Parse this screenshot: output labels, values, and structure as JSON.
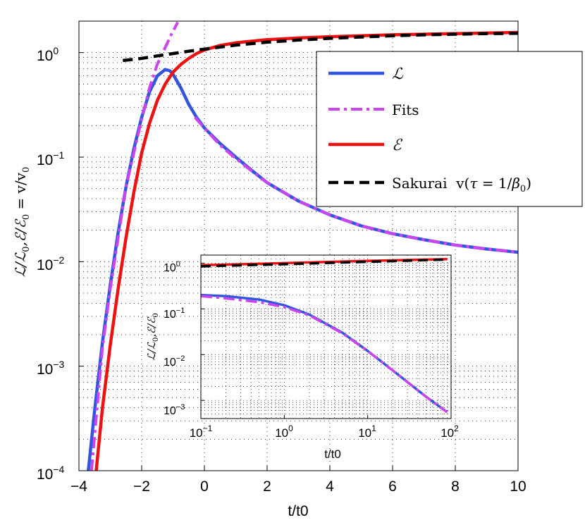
{
  "chart_data": [
    {
      "type": "line",
      "role": "main",
      "xlabel": "t/t0",
      "ylabel": "L/L0, E/E0 = v/v0",
      "ylabel_parts": {
        "a": "ℒ/ℒ",
        "b": "0",
        "c": ",ℰ/ℰ",
        "d": "0",
        "e": " = v/v",
        "f": "0"
      },
      "x_scale": "linear",
      "y_scale": "log",
      "xlim": [
        -4,
        10
      ],
      "ylim": [
        0.0001,
        2
      ],
      "x_ticks": [
        -4,
        -2,
        0,
        2,
        4,
        6,
        8,
        10
      ],
      "x_tick_labels": [
        "−4",
        "−2",
        "0",
        "2",
        "4",
        "6",
        "8",
        "10"
      ],
      "y_ticks": [
        0.0001,
        0.001,
        0.01,
        0.1,
        1
      ],
      "y_tick_labels": [
        {
          "base": "10",
          "exp": "−4"
        },
        {
          "base": "10",
          "exp": "−3"
        },
        {
          "base": "10",
          "exp": "−2"
        },
        {
          "base": "10",
          "exp": "−1"
        },
        {
          "base": "10",
          "exp": "0"
        }
      ],
      "grid": true,
      "legend": {
        "placement": "upper-right",
        "entries": [
          {
            "label": "ℒ",
            "series": "L"
          },
          {
            "label": "Fits",
            "series": "Fits"
          },
          {
            "label": "ℰ",
            "series": "E"
          },
          {
            "label_pre": "Sakurai  v(",
            "label_tau": "τ",
            "label_mid": " = 1/",
            "label_beta": "β",
            "label_sub": "0",
            "label_post": ")",
            "series": "Sakurai"
          }
        ]
      },
      "series": [
        {
          "name": "L",
          "color": "#3355dd",
          "style": "solid",
          "x": [
            -3.7,
            -3.5,
            -3.25,
            -3.0,
            -2.75,
            -2.5,
            -2.25,
            -2.0,
            -1.75,
            -1.5,
            -1.25,
            -1.1,
            -1.0,
            -0.75,
            -0.5,
            -0.25,
            0.0,
            0.5,
            1.0,
            1.5,
            2.0,
            3.0,
            4.0,
            5.0,
            6.0,
            7.0,
            8.0,
            9.0,
            10.0
          ],
          "y": [
            0.0001,
            0.00038,
            0.0017,
            0.006,
            0.019,
            0.052,
            0.12,
            0.24,
            0.42,
            0.6,
            0.69,
            0.67,
            0.62,
            0.46,
            0.32,
            0.24,
            0.19,
            0.135,
            0.1,
            0.075,
            0.057,
            0.038,
            0.028,
            0.022,
            0.0185,
            0.0162,
            0.0144,
            0.0132,
            0.0123
          ]
        },
        {
          "name": "Fits",
          "color": "#cc44ee",
          "style": "dashdot",
          "segments": [
            {
              "x": [
                -3.6,
                -3.25,
                -3.0,
                -2.5,
                -2.0,
                -1.75,
                -1.5,
                -1.25,
                -1.05,
                -0.85
              ],
              "y": [
                0.0001,
                0.0015,
                0.0055,
                0.052,
                0.23,
                0.46,
                0.78,
                1.12,
                1.5,
                1.95
              ]
            },
            {
              "x": [
                -0.3,
                0.0,
                0.5,
                1.0,
                1.5,
                2.0,
                3.0,
                4.0,
                5.0,
                6.0,
                7.0,
                8.0,
                9.0,
                10.0
              ],
              "y": [
                0.24,
                0.19,
                0.13,
                0.097,
                0.074,
                0.057,
                0.038,
                0.028,
                0.022,
                0.0185,
                0.0162,
                0.0144,
                0.0132,
                0.0123
              ]
            }
          ]
        },
        {
          "name": "E",
          "color": "#ee1111",
          "style": "solid",
          "x": [
            -3.45,
            -3.25,
            -3.0,
            -2.75,
            -2.5,
            -2.25,
            -2.0,
            -1.75,
            -1.5,
            -1.25,
            -1.0,
            -0.75,
            -0.5,
            -0.25,
            0.0,
            0.5,
            1.0,
            2.0,
            3.0,
            4.0,
            6.0,
            8.0,
            10.0
          ],
          "y": [
            0.0001,
            0.0004,
            0.0016,
            0.0055,
            0.017,
            0.046,
            0.11,
            0.21,
            0.35,
            0.5,
            0.65,
            0.77,
            0.88,
            0.98,
            1.06,
            1.17,
            1.24,
            1.33,
            1.38,
            1.42,
            1.48,
            1.52,
            1.56
          ]
        },
        {
          "name": "Sakurai",
          "color": "#000000",
          "style": "dashed",
          "x": [
            -2.6,
            -2.0,
            -1.5,
            -1.0,
            -0.5,
            0.0,
            0.5,
            1.0,
            2.0,
            3.0,
            4.0,
            5.0,
            6.0,
            7.0,
            8.0,
            9.0,
            10.0
          ],
          "y": [
            0.84,
            0.88,
            0.93,
            0.98,
            1.03,
            1.08,
            1.13,
            1.18,
            1.26,
            1.32,
            1.37,
            1.41,
            1.45,
            1.48,
            1.5,
            1.52,
            1.53
          ]
        }
      ]
    },
    {
      "type": "line",
      "role": "inset",
      "xlabel": "t/t0",
      "ylabel": "L/L0, E/E0",
      "ylabel_parts": {
        "a": "ℒ/ℒ",
        "b": "0",
        "c": ",ℰ/ℰ",
        "d": "0"
      },
      "x_scale": "log",
      "y_scale": "log",
      "xlim": [
        0.1,
        100
      ],
      "ylim": [
        0.0004,
        1.5
      ],
      "x_ticks": [
        0.1,
        1,
        10,
        100
      ],
      "x_tick_labels": [
        {
          "base": "10",
          "exp": "−1"
        },
        {
          "base": "10",
          "exp": "0"
        },
        {
          "base": "10",
          "exp": "1"
        },
        {
          "base": "10",
          "exp": "2"
        }
      ],
      "y_ticks": [
        0.001,
        0.01,
        0.1,
        1
      ],
      "y_tick_labels": [
        {
          "base": "10",
          "exp": "−3"
        },
        {
          "base": "10",
          "exp": "−2"
        },
        {
          "base": "10",
          "exp": "−1"
        },
        {
          "base": "10",
          "exp": "0"
        }
      ],
      "grid": true,
      "series": [
        {
          "name": "L",
          "color": "#3355dd",
          "style": "solid",
          "x": [
            0.1,
            0.2,
            0.5,
            1,
            2,
            5,
            10,
            20,
            50,
            90
          ],
          "y": [
            0.2,
            0.19,
            0.16,
            0.12,
            0.075,
            0.03,
            0.012,
            0.0045,
            0.0012,
            0.00055
          ]
        },
        {
          "name": "Fits",
          "color": "#cc44ee",
          "style": "dashdot",
          "x": [
            0.1,
            0.2,
            0.5,
            1,
            2,
            5,
            10,
            20,
            50,
            90
          ],
          "y": [
            0.19,
            0.17,
            0.14,
            0.11,
            0.072,
            0.029,
            0.012,
            0.0045,
            0.0012,
            0.00055
          ]
        },
        {
          "name": "E",
          "color": "#ee1111",
          "style": "solid",
          "x": [
            0.1,
            1,
            10,
            90
          ],
          "y": [
            0.9,
            1.0,
            1.12,
            1.22
          ]
        },
        {
          "name": "Sakurai",
          "color": "#000000",
          "style": "dashed",
          "x": [
            0.1,
            1,
            10,
            90
          ],
          "y": [
            0.85,
            0.95,
            1.07,
            1.2
          ]
        }
      ]
    }
  ]
}
